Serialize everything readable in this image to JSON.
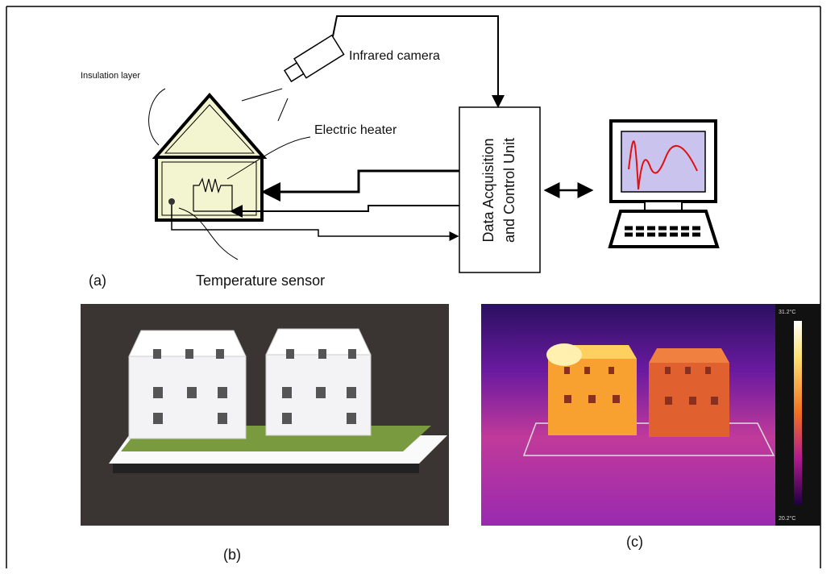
{
  "schematic": {
    "insulation_label": "Insulation layer",
    "camera_label": "Infrared camera",
    "heater_label": "Electric heater",
    "daq_label_line1": "Data Acquisition",
    "daq_label_line2": "and Control Unit",
    "sensor_label": "Temperature sensor",
    "panel_label": "(a)"
  },
  "photo": {
    "panel_label": "(b)"
  },
  "thermal": {
    "panel_label": "(c)",
    "scale_max": "31.2°C",
    "scale_min": "20.2°C"
  }
}
